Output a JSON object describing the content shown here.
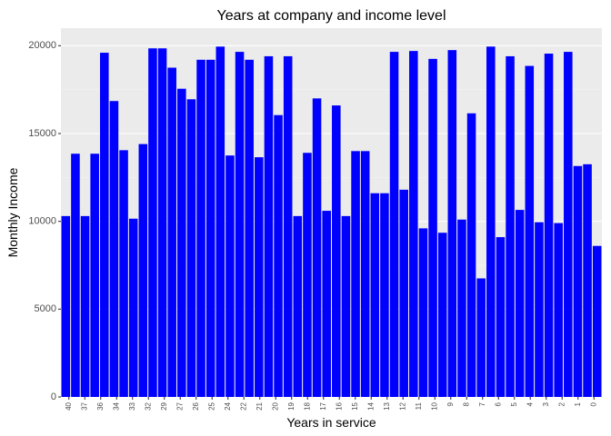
{
  "chart_data": {
    "type": "bar",
    "title": "Years at company and income level",
    "xlabel": "Years in service",
    "ylabel": "Monthly Income",
    "ylim": [
      0,
      21000
    ],
    "y_ticks": [
      0,
      5000,
      10000,
      15000,
      20000
    ],
    "grid": true,
    "legend": "none",
    "bar_color": "#0000FF",
    "panel_color": "#EBEBEB",
    "x_tick_labels": [
      "40",
      "37",
      "36",
      "34",
      "33",
      "32",
      "29",
      "27",
      "26",
      "25",
      "24",
      "22",
      "21",
      "20",
      "19",
      "18",
      "17",
      "16",
      "15",
      "14",
      "13",
      "12",
      "11",
      "10",
      "9",
      "8",
      "7",
      "6",
      "5",
      "4",
      "3",
      "2",
      "1",
      "0"
    ],
    "values": [
      10300,
      13850,
      10300,
      13850,
      19600,
      16850,
      14050,
      10150,
      14400,
      19850,
      19850,
      18750,
      17550,
      16950,
      19200,
      19200,
      19950,
      13750,
      19650,
      19200,
      13650,
      19400,
      16050,
      19400,
      10300,
      13900,
      17000,
      10600,
      16600,
      10300,
      14000,
      14000,
      11600,
      11600,
      19650,
      11800,
      19700,
      9600,
      19250,
      9350,
      19750,
      10100,
      16150,
      6750,
      19950,
      9100,
      19400,
      10650,
      18850,
      9950,
      19550,
      9900,
      19650,
      13150,
      13250,
      8600
    ]
  }
}
